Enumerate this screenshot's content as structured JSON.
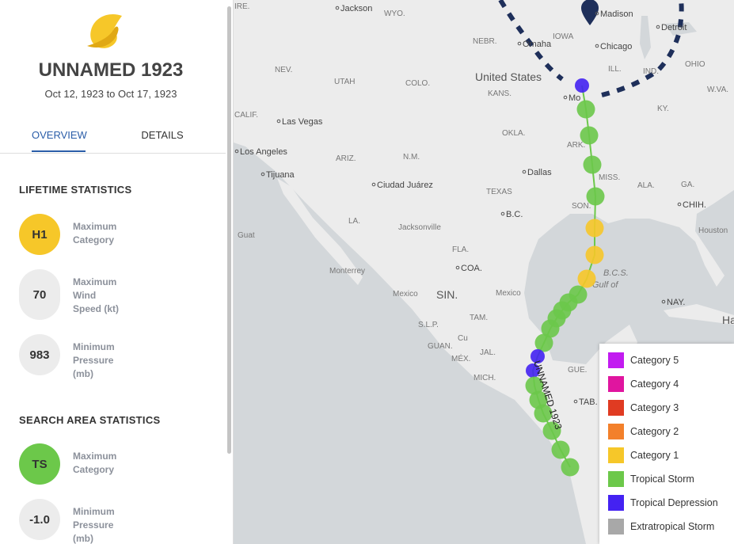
{
  "header": {
    "title": "UNNAMED 1923",
    "dates": "Oct 12, 1923 to Oct 17, 1923"
  },
  "tabs": [
    "OVERVIEW",
    "DETAILS"
  ],
  "sections": [
    {
      "title": "LIFETIME STATISTICS",
      "stats": [
        {
          "badge": "H1",
          "label": "Maximum Category",
          "color": "#f6c729"
        },
        {
          "badge": "70",
          "label": "Maximum Wind Speed (kt)",
          "color": "#ececec"
        },
        {
          "badge": "983",
          "label": "Minimum Pressure (mb)",
          "color": "#ececec"
        }
      ]
    },
    {
      "title": "SEARCH AREA STATISTICS",
      "stats": [
        {
          "badge": "TS",
          "label": "Maximum Category",
          "color": "#6cc84a"
        },
        {
          "badge": "-1.0",
          "label": "Minimum Pressure (mb)",
          "color": "#ececec"
        }
      ]
    }
  ],
  "legend": [
    {
      "label": "Category 5",
      "color": "#c21bf0"
    },
    {
      "label": "Category 4",
      "color": "#e0159f"
    },
    {
      "label": "Category 3",
      "color": "#e03b22"
    },
    {
      "label": "Category 2",
      "color": "#f3802b"
    },
    {
      "label": "Category 1",
      "color": "#f6c729"
    },
    {
      "label": "Tropical Storm",
      "color": "#6cc84a"
    },
    {
      "label": "Tropical Depression",
      "color": "#4422f2"
    },
    {
      "label": "Extratropical Storm",
      "color": "#a8a8a8"
    }
  ],
  "map": {
    "track_label": "UNNAMED 1923",
    "labels": [
      "IRE.",
      "Jackson",
      "WYO.",
      "NEBR.",
      "Omaha",
      "IOWA",
      "Madison",
      "Chicago",
      "Detroit",
      "OHIO",
      "IND.",
      "ILL.",
      "United States",
      "KANS.",
      "Mo",
      "NEV.",
      "UTAH",
      "COLO.",
      "CALIF.",
      "Las Vegas",
      "KY.",
      "W.VA.",
      "OKLA.",
      "ARK.",
      "Los Angeles",
      "ARIZ.",
      "N.M.",
      "Tijuana",
      "Dallas",
      "MISS.",
      "ALA.",
      "GA.",
      "Ciudad Juárez",
      "TEXAS",
      "B.C.",
      "SON.",
      "CHIH.",
      "Houston",
      "LA.",
      "Jacksonville",
      "FLA.",
      "COA.",
      "Monterrey",
      "B.C.S.",
      "Gulf of",
      "Mexico",
      "SIN.",
      "Mexico",
      "TAM.",
      "S.L.P.",
      "NAY.",
      "Havana",
      "Cu",
      "GUAN.",
      "JAL.",
      "MÉX.",
      "MICH.",
      "GUE.",
      "TAB.",
      "Guat"
    ]
  }
}
